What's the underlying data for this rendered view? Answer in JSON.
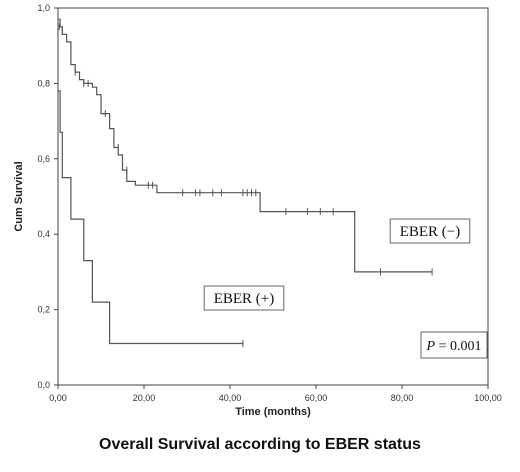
{
  "caption": "Overall Survival according to EBER status",
  "chart_data": {
    "type": "line",
    "step": true,
    "xlabel": "Time (months)",
    "ylabel": "Cum Survival",
    "xlim": [
      0,
      100
    ],
    "ylim": [
      0,
      1
    ],
    "x_ticks": [
      "0,00",
      "20,00",
      "40,00",
      "60,00",
      "80,00",
      "100,00"
    ],
    "y_ticks": [
      "0,0",
      "0,2",
      "0,4",
      "0,6",
      "0,8",
      "1,0"
    ],
    "grid": false,
    "p_value": "= 0.001",
    "series": [
      {
        "name": "EBER (−)",
        "line_color": "#555555",
        "steps": [
          [
            0,
            0.97
          ],
          [
            0.5,
            0.95
          ],
          [
            1,
            0.93
          ],
          [
            2,
            0.91
          ],
          [
            3,
            0.85
          ],
          [
            4,
            0.83
          ],
          [
            5,
            0.81
          ],
          [
            6,
            0.8
          ],
          [
            8,
            0.79
          ],
          [
            9,
            0.77
          ],
          [
            10,
            0.72
          ],
          [
            12,
            0.68
          ],
          [
            13,
            0.63
          ],
          [
            14,
            0.61
          ],
          [
            15,
            0.57
          ],
          [
            16,
            0.54
          ],
          [
            18,
            0.53
          ],
          [
            23,
            0.51
          ],
          [
            46,
            0.51
          ],
          [
            47,
            0.46
          ],
          [
            68,
            0.46
          ],
          [
            69,
            0.3
          ],
          [
            87,
            0.3
          ]
        ],
        "censored": [
          [
            0.3,
            0.95
          ],
          [
            1,
            0.94
          ],
          [
            4,
            0.83
          ],
          [
            6,
            0.8
          ],
          [
            7,
            0.8
          ],
          [
            11,
            0.72
          ],
          [
            14,
            0.63
          ],
          [
            16,
            0.57
          ],
          [
            21,
            0.53
          ],
          [
            22,
            0.53
          ],
          [
            29,
            0.51
          ],
          [
            32,
            0.51
          ],
          [
            33,
            0.51
          ],
          [
            36,
            0.51
          ],
          [
            38,
            0.51
          ],
          [
            43,
            0.51
          ],
          [
            44,
            0.51
          ],
          [
            45,
            0.51
          ],
          [
            46,
            0.51
          ],
          [
            53,
            0.46
          ],
          [
            58,
            0.46
          ],
          [
            61,
            0.46
          ],
          [
            64,
            0.46
          ],
          [
            75,
            0.3
          ],
          [
            87,
            0.3
          ]
        ]
      },
      {
        "name": "EBER (+)",
        "line_color": "#555555",
        "steps": [
          [
            0,
            0.78
          ],
          [
            0.5,
            0.67
          ],
          [
            1,
            0.55
          ],
          [
            3,
            0.44
          ],
          [
            6,
            0.33
          ],
          [
            8,
            0.22
          ],
          [
            12,
            0.11
          ],
          [
            43,
            0.11
          ]
        ],
        "censored": [
          [
            43,
            0.11
          ]
        ]
      }
    ]
  }
}
